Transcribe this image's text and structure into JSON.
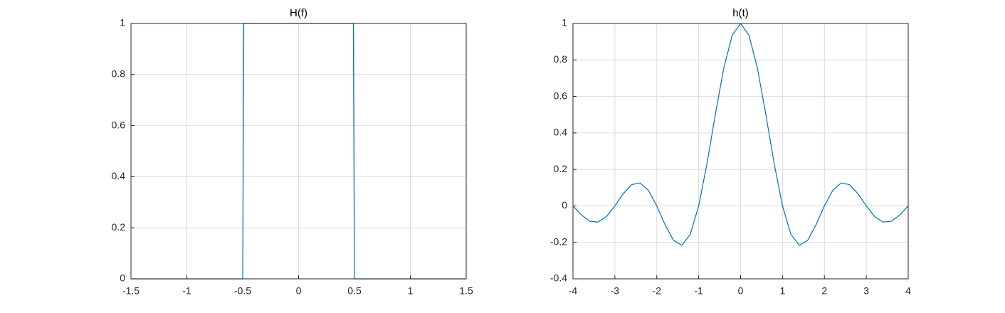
{
  "chart_data": [
    {
      "type": "line",
      "title": "H(f)",
      "x": [
        -1.5,
        -0.5,
        -0.49,
        0.49,
        0.5,
        1.5
      ],
      "series": [
        {
          "color": "#0072bd",
          "values": [
            0,
            0,
            1,
            1,
            0,
            0
          ]
        }
      ],
      "xlim": [
        -1.5,
        1.5
      ],
      "xticks": [
        -1.5,
        -1,
        -0.5,
        0,
        0.5,
        1,
        1.5
      ],
      "ylim": [
        0,
        1
      ],
      "yticks": [
        0,
        0.2,
        0.4,
        0.6,
        0.8,
        1
      ],
      "grid": true
    },
    {
      "type": "line",
      "title": "h(t)",
      "x": [
        -4,
        -3.8,
        -3.6,
        -3.4,
        -3.2,
        -3,
        -2.8,
        -2.6,
        -2.4,
        -2.2,
        -2,
        -1.8,
        -1.6,
        -1.4,
        -1.2,
        -1,
        -0.8,
        -0.6,
        -0.4,
        -0.2,
        0,
        0.2,
        0.4,
        0.6,
        0.8,
        1,
        1.2,
        1.4,
        1.6,
        1.8,
        2,
        2.2,
        2.4,
        2.6,
        2.8,
        3,
        3.2,
        3.4,
        3.6,
        3.8,
        4
      ],
      "series": [
        {
          "color": "#0072bd",
          "values": [
            0,
            -0.0492,
            -0.0841,
            -0.089,
            -0.0585,
            0,
            0.0668,
            0.1164,
            0.1261,
            0.085,
            0,
            -0.1039,
            -0.1892,
            -0.2162,
            -0.1559,
            0,
            0.2339,
            0.5046,
            0.7568,
            0.9355,
            1,
            0.9355,
            0.7568,
            0.5046,
            0.2339,
            0,
            -0.1559,
            -0.2162,
            -0.1892,
            -0.1039,
            0,
            0.085,
            0.1261,
            0.1164,
            0.0668,
            0,
            -0.0585,
            -0.089,
            -0.0841,
            -0.0492,
            0
          ]
        }
      ],
      "xlim": [
        -4,
        4
      ],
      "xticks": [
        -4,
        -3,
        -2,
        -1,
        0,
        1,
        2,
        3,
        4
      ],
      "ylim": [
        -0.4,
        1
      ],
      "yticks": [
        -0.4,
        -0.2,
        0,
        0.2,
        0.4,
        0.6,
        0.8,
        1
      ],
      "grid": true
    }
  ]
}
